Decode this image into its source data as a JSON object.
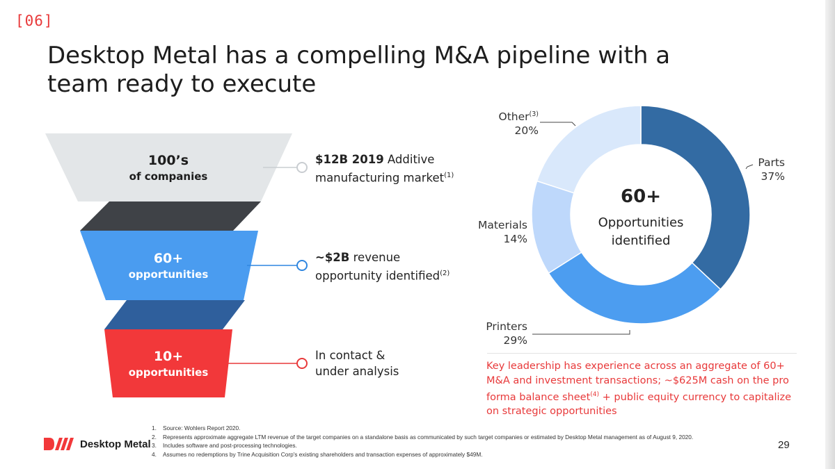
{
  "slide_tag": "[06]",
  "title": "Desktop Metal has a compelling M&A pipeline with a team ready to execute",
  "funnel": {
    "stages": [
      {
        "big": "100’s",
        "small": "of companies",
        "color": "#e3e6e8",
        "text_color": "#1d1d1d"
      },
      {
        "big": "60+",
        "small": "opportunities",
        "color": "#4a9cf0",
        "text_color": "#ffffff"
      },
      {
        "big": "10+",
        "small": "opportunities",
        "color": "#f2383a",
        "text_color": "#ffffff"
      }
    ],
    "connector_colors": [
      "#3f4247",
      "#2f5f9c"
    ],
    "callouts": [
      {
        "bold": "$12B 2019",
        "text1": " Additive",
        "text2": "manufacturing market",
        "sup": "(1)",
        "dot_color": "#c9cdd1"
      },
      {
        "bold": "~$2B",
        "text1": " revenue",
        "text2": "opportunity identified",
        "sup": "(2)",
        "dot_color": "#2f86e0"
      },
      {
        "bold": "",
        "text1": "In contact &",
        "text2": "under analysis",
        "sup": "",
        "dot_color": "#e8393a"
      }
    ]
  },
  "chart_data": {
    "type": "pie",
    "style": "donut",
    "categories": [
      "Parts",
      "Printers",
      "Materials",
      "Other"
    ],
    "values": [
      37,
      29,
      14,
      20
    ],
    "value_labels": [
      "37%",
      "29%",
      "14%",
      "20%"
    ],
    "label_superscripts": [
      "",
      "",
      "",
      "(3)"
    ],
    "colors": [
      "#336ba3",
      "#4c9df0",
      "#bed8fb",
      "#d9e8fb"
    ],
    "center_value": "60+",
    "center_label": "Opportunities identified"
  },
  "note": {
    "line_a": "Key leadership has experience across an aggregate of 60+ M&A and investment transactions; ~$625M cash on the pro forma balance sheet",
    "sup": "(4)",
    "line_b": " + public equity currency to capitalize on strategic opportunities"
  },
  "footnotes": [
    {
      "num": "1.",
      "text": "Source: Wohlers Report 2020."
    },
    {
      "num": "2.",
      "text": "Represents approximate aggregate LTM revenue of the target companies on a standalone basis as communicated by such target companies or estimated by Desktop Metal management as of August 9, 2020."
    },
    {
      "num": "3.",
      "text": "Includes software and post-processing technologies."
    },
    {
      "num": "4.",
      "text": "Assumes no redemptions by Trine Acquisition Corp's existing shareholders and transaction expenses of approximately $49M."
    }
  ],
  "logo_text": "Desktop Metal",
  "page_number": "29"
}
